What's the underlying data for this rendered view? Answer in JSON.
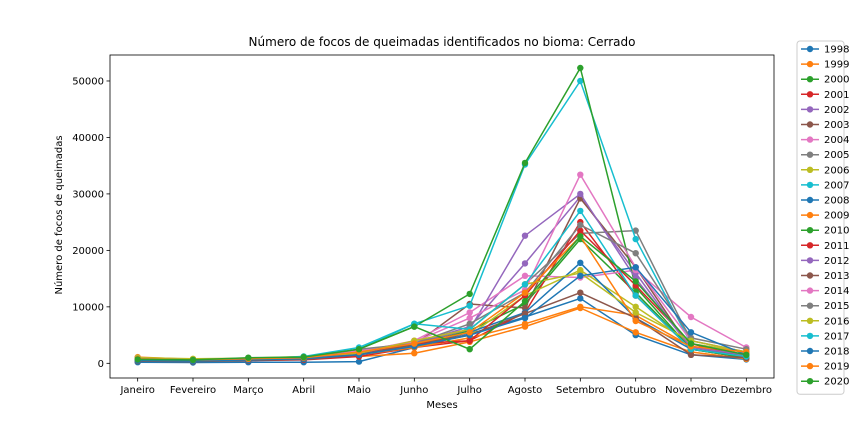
{
  "chart_data": {
    "type": "line",
    "title": "Número de focos de queimadas identificados no bioma: Cerrado",
    "xlabel": "Meses",
    "ylabel": "Número de focos de queimadas",
    "categories": [
      "Janeiro",
      "Fevereiro",
      "Março",
      "Abril",
      "Maio",
      "Junho",
      "Julho",
      "Agosto",
      "Setembro",
      "Outubro",
      "Novembro",
      "Dezembro"
    ],
    "ylim": [
      -2600,
      54600
    ],
    "yticks": [
      0,
      10000,
      20000,
      30000,
      40000,
      50000
    ],
    "ytick_labels": [
      "0",
      "10000",
      "20000",
      "30000",
      "40000",
      "50000"
    ],
    "grid": false,
    "legend_position": "outside right",
    "series": [
      {
        "name": "1998",
        "color": "#1f77b4",
        "values": [
          200,
          150,
          200,
          200,
          300,
          2800,
          5200,
          8200,
          11500,
          5000,
          1500,
          700
        ]
      },
      {
        "name": "1999",
        "color": "#ff7f0e",
        "values": [
          1100,
          700,
          800,
          900,
          1200,
          1800,
          3800,
          6500,
          9800,
          5500,
          2000,
          800
        ]
      },
      {
        "name": "2000",
        "color": "#2ca02c",
        "values": [
          600,
          500,
          800,
          800,
          1500,
          3200,
          5800,
          10500,
          22000,
          12500,
          2500,
          1000
        ]
      },
      {
        "name": "2001",
        "color": "#d62728",
        "values": [
          500,
          400,
          500,
          600,
          1200,
          2800,
          4000,
          9000,
          25000,
          12000,
          2500,
          1000
        ]
      },
      {
        "name": "2002",
        "color": "#9467bd",
        "values": [
          800,
          600,
          900,
          1000,
          1800,
          3500,
          6500,
          17700,
          29500,
          16000,
          2500,
          1200
        ]
      },
      {
        "name": "2003",
        "color": "#8c564b",
        "values": [
          700,
          600,
          800,
          900,
          1500,
          3300,
          10500,
          9800,
          29200,
          17000,
          2500,
          1500
        ]
      },
      {
        "name": "2004",
        "color": "#e377c2",
        "values": [
          1000,
          600,
          800,
          1000,
          2000,
          4000,
          9000,
          15500,
          15200,
          16500,
          8200,
          2800
        ]
      },
      {
        "name": "2005",
        "color": "#7f7f7f",
        "values": [
          700,
          500,
          800,
          900,
          2200,
          3500,
          6000,
          14000,
          23000,
          23500,
          4000,
          2000
        ]
      },
      {
        "name": "2006",
        "color": "#bcbd22",
        "values": [
          600,
          500,
          700,
          800,
          1500,
          3000,
          5000,
          12000,
          16500,
          10000,
          3500,
          2000
        ]
      },
      {
        "name": "2007",
        "color": "#17becf",
        "values": [
          600,
          500,
          800,
          1000,
          2500,
          7000,
          10200,
          35200,
          50000,
          22000,
          3500,
          1500
        ]
      },
      {
        "name": "2008",
        "color": "#1f77b4",
        "values": [
          500,
          400,
          600,
          700,
          1500,
          3000,
          5500,
          9000,
          17800,
          8000,
          2500,
          1200
        ]
      },
      {
        "name": "2009",
        "color": "#ff7f0e",
        "values": [
          600,
          500,
          700,
          800,
          1500,
          2800,
          4500,
          7000,
          10000,
          8500,
          3000,
          1500
        ]
      },
      {
        "name": "2010",
        "color": "#2ca02c",
        "values": [
          800,
          600,
          800,
          1000,
          2500,
          6500,
          12300,
          35500,
          52300,
          13500,
          2500,
          1000
        ]
      },
      {
        "name": "2011",
        "color": "#d62728",
        "values": [
          500,
          500,
          600,
          800,
          1500,
          3500,
          4000,
          12000,
          23500,
          13800,
          3500,
          1000
        ]
      },
      {
        "name": "2012",
        "color": "#9467bd",
        "values": [
          600,
          500,
          700,
          900,
          2000,
          3800,
          6000,
          22600,
          30000,
          15000,
          2800,
          1500
        ]
      },
      {
        "name": "2013",
        "color": "#8c564b",
        "values": [
          400,
          300,
          500,
          700,
          1500,
          3500,
          5000,
          8800,
          12500,
          8000,
          1500,
          1000
        ]
      },
      {
        "name": "2014",
        "color": "#e377c2",
        "values": [
          700,
          500,
          800,
          1000,
          2200,
          3800,
          8000,
          13000,
          33400,
          17000,
          4000,
          2000
        ]
      },
      {
        "name": "2015",
        "color": "#7f7f7f",
        "values": [
          700,
          600,
          900,
          1000,
          2500,
          3500,
          7000,
          12500,
          24500,
          19500,
          4500,
          2500
        ]
      },
      {
        "name": "2016",
        "color": "#bcbd22",
        "values": [
          1000,
          800,
          900,
          1200,
          1800,
          4000,
          6000,
          14000,
          16000,
          9000,
          4000,
          2000
        ]
      },
      {
        "name": "2017",
        "color": "#17becf",
        "values": [
          800,
          600,
          800,
          1200,
          2800,
          7000,
          6000,
          14000,
          27000,
          12000,
          2500,
          1200
        ]
      },
      {
        "name": "2018",
        "color": "#1f77b4",
        "values": [
          500,
          400,
          600,
          800,
          1500,
          3000,
          5000,
          8000,
          15500,
          17000,
          5500,
          1500
        ]
      },
      {
        "name": "2019",
        "color": "#ff7f0e",
        "values": [
          800,
          600,
          800,
          1000,
          2000,
          3500,
          5500,
          12500,
          22500,
          7500,
          3000,
          2000
        ]
      },
      {
        "name": "2020",
        "color": "#2ca02c",
        "values": [
          700,
          600,
          1000,
          1100,
          2500,
          6500,
          2500,
          11000,
          22500,
          14500,
          3500,
          1500
        ]
      }
    ]
  }
}
